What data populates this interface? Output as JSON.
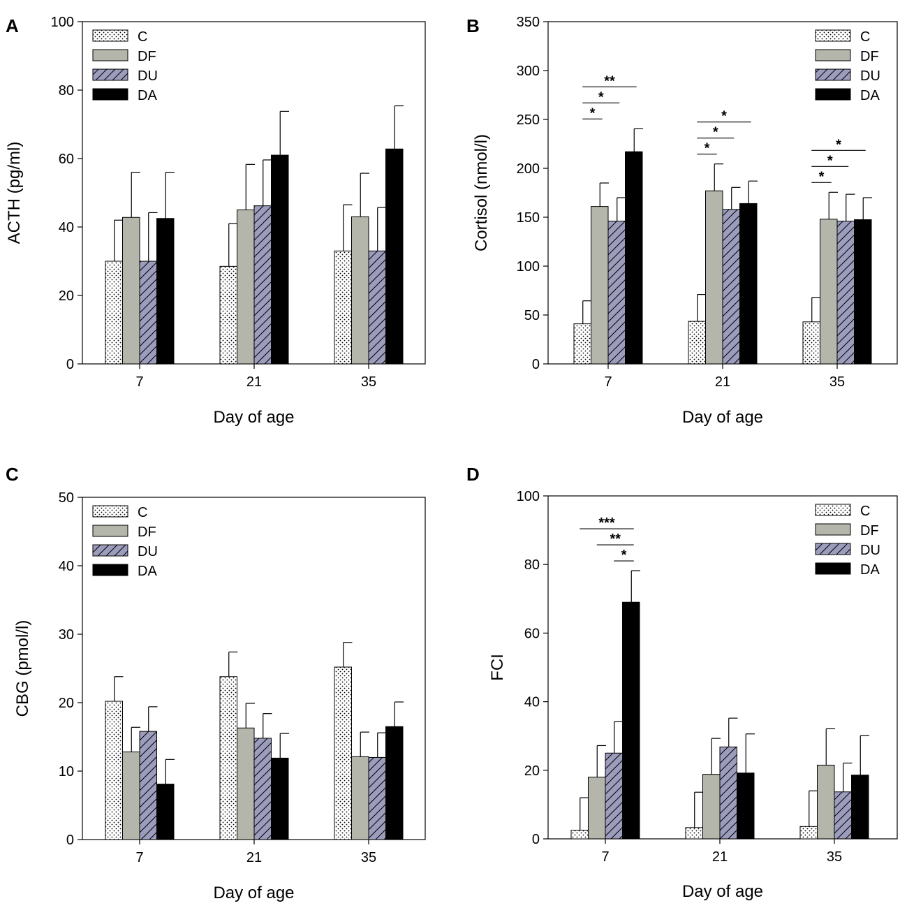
{
  "figure": {
    "colors": {
      "C": "#ffffff",
      "DF": "#b4b6ab",
      "DU": "#9c9cbc",
      "DA": "#000000",
      "axis": "#000000"
    },
    "patterns": {
      "C": "dots",
      "DF": "solid",
      "DU": "hatch",
      "DA": "solid"
    }
  },
  "chart_data": [
    {
      "panel": "A",
      "type": "bar",
      "ylabel": "ACTH (pg/ml)",
      "xlabel": "Day of age",
      "ylim": [
        0,
        100
      ],
      "yticks": [
        0,
        20,
        40,
        60,
        80,
        100
      ],
      "categories": [
        "7",
        "21",
        "35"
      ],
      "legend": {
        "position": "top-left",
        "entries": [
          "C",
          "DF",
          "DU",
          "DA"
        ]
      },
      "series": [
        {
          "name": "C",
          "values": [
            30,
            28.5,
            33
          ],
          "errors": [
            12,
            12.5,
            13.5
          ]
        },
        {
          "name": "DF",
          "values": [
            42.8,
            45,
            43
          ],
          "errors": [
            13.2,
            13.3,
            12.7
          ]
        },
        {
          "name": "DU",
          "values": [
            30,
            46.2,
            33
          ],
          "errors": [
            14.2,
            13.4,
            12.7
          ]
        },
        {
          "name": "DA",
          "values": [
            42.5,
            61,
            62.8
          ],
          "errors": [
            13.5,
            12.8,
            12.6
          ]
        }
      ],
      "significance": []
    },
    {
      "panel": "B",
      "type": "bar",
      "ylabel": "Cortisol (nmol/l)",
      "xlabel": "Day of age",
      "ylim": [
        0,
        350
      ],
      "yticks": [
        0,
        50,
        100,
        150,
        200,
        250,
        300,
        350
      ],
      "categories": [
        "7",
        "21",
        "35"
      ],
      "legend": {
        "position": "top-right",
        "entries": [
          "C",
          "DF",
          "DU",
          "DA"
        ]
      },
      "series": [
        {
          "name": "C",
          "values": [
            41,
            43.5,
            43
          ],
          "errors": [
            23.5,
            27.5,
            25
          ]
        },
        {
          "name": "DF",
          "values": [
            161,
            177,
            148
          ],
          "errors": [
            24,
            27.5,
            27.5
          ]
        },
        {
          "name": "DU",
          "values": [
            146,
            158,
            146
          ],
          "errors": [
            24,
            22.5,
            27.5
          ]
        },
        {
          "name": "DA",
          "values": [
            217,
            164,
            147.5
          ],
          "errors": [
            23.5,
            23,
            22.5
          ]
        }
      ],
      "significance": [
        {
          "category": 0,
          "from": 0,
          "to": 1,
          "level": 0,
          "label": "*"
        },
        {
          "category": 0,
          "from": 0,
          "to": 2,
          "level": 1,
          "label": "*"
        },
        {
          "category": 0,
          "from": 0,
          "to": 3,
          "level": 2,
          "label": "**"
        },
        {
          "category": 1,
          "from": 0,
          "to": 1,
          "level": 0,
          "label": "*"
        },
        {
          "category": 1,
          "from": 0,
          "to": 2,
          "level": 1,
          "label": "*"
        },
        {
          "category": 1,
          "from": 0,
          "to": 3,
          "level": 2,
          "label": "*"
        },
        {
          "category": 2,
          "from": 0,
          "to": 1,
          "level": 0,
          "label": "*"
        },
        {
          "category": 2,
          "from": 0,
          "to": 2,
          "level": 1,
          "label": "*"
        },
        {
          "category": 2,
          "from": 0,
          "to": 3,
          "level": 2,
          "label": "*"
        }
      ]
    },
    {
      "panel": "C",
      "type": "bar",
      "ylabel": "CBG (pmol/l)",
      "xlabel": "Day of age",
      "ylim": [
        0,
        50
      ],
      "yticks": [
        0,
        10,
        20,
        30,
        40,
        50
      ],
      "categories": [
        "7",
        "21",
        "35"
      ],
      "legend": {
        "position": "top-left",
        "entries": [
          "C",
          "DF",
          "DU",
          "DA"
        ]
      },
      "series": [
        {
          "name": "C",
          "values": [
            20.2,
            23.8,
            25.2
          ],
          "errors": [
            3.6,
            3.6,
            3.6
          ]
        },
        {
          "name": "DF",
          "values": [
            12.8,
            16.3,
            12.1
          ],
          "errors": [
            3.6,
            3.6,
            3.6
          ]
        },
        {
          "name": "DU",
          "values": [
            15.8,
            14.8,
            12
          ],
          "errors": [
            3.6,
            3.6,
            3.6
          ]
        },
        {
          "name": "DA",
          "values": [
            8.1,
            11.9,
            16.5
          ],
          "errors": [
            3.6,
            3.6,
            3.6
          ]
        }
      ],
      "significance": []
    },
    {
      "panel": "D",
      "type": "bar",
      "ylabel": "FCI",
      "xlabel": "Day of age",
      "ylim": [
        0,
        100
      ],
      "yticks": [
        0,
        20,
        40,
        60,
        80,
        100
      ],
      "categories": [
        "7",
        "21",
        "35"
      ],
      "legend": {
        "position": "top-right",
        "entries": [
          "C",
          "DF",
          "DU",
          "DA"
        ]
      },
      "series": [
        {
          "name": "C",
          "values": [
            2.5,
            3.3,
            3.6
          ],
          "errors": [
            9.5,
            10.3,
            10.4
          ]
        },
        {
          "name": "DF",
          "values": [
            18,
            18.8,
            21.5
          ],
          "errors": [
            9.2,
            10.5,
            10.6
          ]
        },
        {
          "name": "DU",
          "values": [
            25,
            26.8,
            13.7
          ],
          "errors": [
            9.2,
            8.4,
            8.4
          ]
        },
        {
          "name": "DA",
          "values": [
            69,
            19.2,
            18.6
          ],
          "errors": [
            9.2,
            11.4,
            11.5
          ]
        }
      ],
      "significance": [
        {
          "category": 0,
          "from": 0,
          "to": 3,
          "level": 2,
          "label": "***"
        },
        {
          "category": 0,
          "from": 1,
          "to": 3,
          "level": 1,
          "label": "**"
        },
        {
          "category": 0,
          "from": 2,
          "to": 3,
          "level": 0,
          "label": "*"
        }
      ]
    }
  ]
}
